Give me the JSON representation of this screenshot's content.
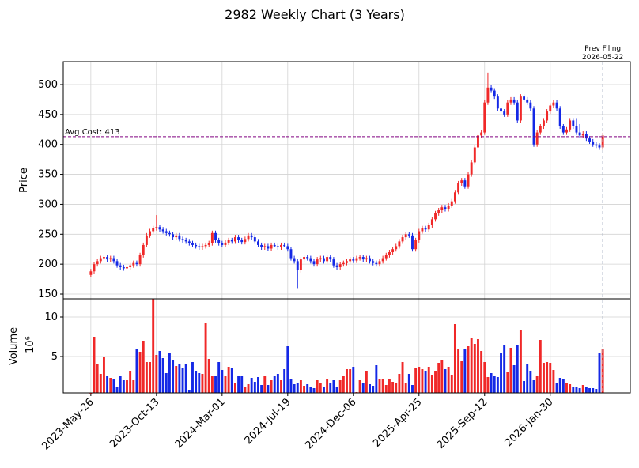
{
  "chart_data": {
    "type": "candlestick",
    "title": "2982 Weekly Chart (3 Years)",
    "ylabel": "Price",
    "volume_label": "Volume",
    "volume_offset": "10⁶",
    "up_color": "#f02828",
    "down_color": "#1428e6",
    "grid": true,
    "xlim": [
      -8.4,
      164.4
    ],
    "xticks": [
      {
        "value": 0,
        "label": "2023-May-26"
      },
      {
        "value": 20,
        "label": "2023-Oct-13"
      },
      {
        "value": 40,
        "label": "2024-Mar-01"
      },
      {
        "value": 60,
        "label": "2024-Jul-19"
      },
      {
        "value": 80,
        "label": "2024-Dec-06"
      },
      {
        "value": 100,
        "label": "2025-Apr-25"
      },
      {
        "value": 120,
        "label": "2025-Sep-12"
      },
      {
        "value": 140,
        "label": "2026-Jan-30"
      }
    ],
    "ylim": [
      142.1,
      538.3
    ],
    "yticks": [
      150,
      200,
      250,
      300,
      350,
      400,
      450,
      500
    ],
    "volume_ylim": [
      0.4,
      12.3
    ],
    "volume_yticks": [
      5,
      10
    ],
    "avg_cost": {
      "value": 413,
      "label": "Avg Cost: 413",
      "color": "#800080"
    },
    "prev_filing": {
      "x": 156,
      "label_lines": [
        "Prev Filing",
        "2026-05-22"
      ],
      "color": "#778899"
    },
    "open": [
      182,
      188,
      200,
      205,
      210,
      212,
      208,
      210,
      205,
      198,
      195,
      193,
      195,
      198,
      202,
      200,
      215,
      232,
      248,
      255,
      260,
      262,
      258,
      255,
      252,
      250,
      245,
      248,
      242,
      240,
      238,
      235,
      232,
      230,
      228,
      230,
      232,
      235,
      252,
      240,
      235,
      232,
      236,
      240,
      238,
      245,
      240,
      237,
      242,
      248,
      245,
      238,
      232,
      228,
      230,
      226,
      232,
      230,
      228,
      232,
      230,
      225,
      210,
      205,
      190,
      208,
      212,
      210,
      205,
      200,
      208,
      210,
      205,
      212,
      208,
      198,
      195,
      200,
      202,
      205,
      208,
      206,
      210,
      212,
      208,
      210,
      205,
      202,
      200,
      205,
      210,
      215,
      220,
      225,
      230,
      238,
      245,
      250,
      248,
      225,
      240,
      255,
      260,
      258,
      265,
      275,
      285,
      290,
      295,
      292,
      298,
      305,
      320,
      335,
      340,
      330,
      350,
      370,
      395,
      415,
      420,
      470,
      495,
      490,
      480,
      460,
      455,
      450,
      470,
      475,
      470,
      440,
      480,
      475,
      470,
      460,
      400,
      420,
      430,
      440,
      455,
      465,
      470,
      460,
      430,
      420,
      425,
      440,
      430,
      420,
      415,
      418,
      410,
      405,
      400,
      398,
      395
    ],
    "high": [
      192,
      204,
      209,
      214,
      216,
      216,
      214,
      214,
      209,
      202,
      199,
      199,
      202,
      206,
      206,
      219,
      236,
      252,
      259,
      264,
      282,
      266,
      262,
      259,
      256,
      254,
      252,
      252,
      246,
      244,
      242,
      239,
      236,
      234,
      234,
      236,
      239,
      256,
      256,
      244,
      239,
      240,
      244,
      244,
      249,
      249,
      244,
      246,
      252,
      252,
      249,
      242,
      236,
      234,
      234,
      236,
      236,
      234,
      236,
      236,
      234,
      229,
      214,
      209,
      212,
      216,
      216,
      214,
      209,
      212,
      214,
      214,
      216,
      216,
      212,
      202,
      204,
      206,
      209,
      212,
      212,
      214,
      216,
      216,
      214,
      214,
      209,
      206,
      209,
      214,
      219,
      224,
      229,
      234,
      242,
      249,
      254,
      254,
      252,
      244,
      259,
      264,
      264,
      269,
      279,
      289,
      294,
      299,
      299,
      302,
      309,
      324,
      339,
      344,
      344,
      354,
      374,
      399,
      419,
      424,
      474,
      520,
      499,
      494,
      484,
      464,
      459,
      474,
      479,
      479,
      474,
      484,
      484,
      479,
      474,
      464,
      424,
      434,
      444,
      459,
      469,
      474,
      474,
      464,
      434,
      429,
      444,
      444,
      444,
      434,
      422,
      422,
      414,
      409,
      404,
      402,
      419
    ],
    "low": [
      178,
      184,
      196,
      201,
      206,
      204,
      204,
      201,
      194,
      191,
      189,
      189,
      191,
      194,
      196,
      196,
      211,
      228,
      244,
      251,
      256,
      254,
      251,
      248,
      246,
      241,
      241,
      238,
      236,
      234,
      231,
      228,
      226,
      224,
      224,
      226,
      228,
      231,
      236,
      231,
      228,
      228,
      232,
      234,
      234,
      236,
      233,
      233,
      238,
      241,
      234,
      228,
      224,
      224,
      222,
      222,
      228,
      224,
      224,
      228,
      221,
      206,
      201,
      160,
      186,
      204,
      206,
      201,
      196,
      196,
      204,
      201,
      201,
      204,
      194,
      191,
      191,
      196,
      198,
      201,
      202,
      202,
      206,
      204,
      204,
      201,
      198,
      196,
      196,
      201,
      206,
      211,
      216,
      221,
      226,
      234,
      241,
      244,
      221,
      221,
      236,
      251,
      254,
      254,
      261,
      271,
      281,
      286,
      288,
      288,
      294,
      301,
      316,
      331,
      326,
      326,
      346,
      366,
      391,
      411,
      416,
      466,
      486,
      476,
      456,
      451,
      446,
      446,
      466,
      466,
      436,
      436,
      471,
      466,
      456,
      396,
      396,
      416,
      426,
      436,
      451,
      461,
      456,
      426,
      416,
      416,
      421,
      426,
      416,
      411,
      411,
      406,
      401,
      396,
      394,
      391,
      391
    ],
    "close": [
      188,
      200,
      205,
      210,
      212,
      208,
      210,
      205,
      198,
      195,
      193,
      195,
      198,
      202,
      200,
      215,
      232,
      248,
      255,
      260,
      262,
      258,
      255,
      252,
      250,
      245,
      248,
      242,
      240,
      238,
      235,
      232,
      230,
      228,
      230,
      232,
      235,
      252,
      240,
      235,
      232,
      236,
      240,
      238,
      245,
      240,
      237,
      242,
      248,
      245,
      238,
      232,
      228,
      230,
      226,
      232,
      230,
      228,
      232,
      230,
      225,
      210,
      205,
      190,
      208,
      212,
      210,
      205,
      200,
      208,
      210,
      205,
      212,
      208,
      198,
      195,
      200,
      202,
      205,
      208,
      206,
      210,
      212,
      208,
      210,
      205,
      202,
      200,
      205,
      210,
      215,
      220,
      225,
      230,
      238,
      245,
      250,
      248,
      225,
      240,
      255,
      260,
      258,
      265,
      275,
      285,
      290,
      295,
      292,
      298,
      305,
      320,
      335,
      340,
      330,
      350,
      370,
      395,
      415,
      420,
      470,
      495,
      490,
      480,
      460,
      455,
      450,
      470,
      475,
      470,
      440,
      480,
      475,
      470,
      460,
      400,
      420,
      430,
      440,
      455,
      465,
      470,
      460,
      430,
      420,
      425,
      440,
      430,
      420,
      415,
      418,
      410,
      405,
      400,
      398,
      395,
      415
    ],
    "volume": [
      0.3,
      7.5,
      4.0,
      2.8,
      5.0,
      2.6,
      2.3,
      2.2,
      1.2,
      2.5,
      2.0,
      2.0,
      3.2,
      2.0,
      6.0,
      5.6,
      7.0,
      4.3,
      4.3,
      12.3,
      5.2,
      5.7,
      4.8,
      2.9,
      5.4,
      4.6,
      3.8,
      4.1,
      3.5,
      4.0,
      0.8,
      4.3,
      3.2,
      2.9,
      2.8,
      9.3,
      4.7,
      2.6,
      2.5,
      4.3,
      3.3,
      2.6,
      3.7,
      3.5,
      1.6,
      2.5,
      2.5,
      1.1,
      1.5,
      2.3,
      1.8,
      2.4,
      1.4,
      2.5,
      1.4,
      2.0,
      2.6,
      2.8,
      2.0,
      3.4,
      6.3,
      2.2,
      1.5,
      1.6,
      2.0,
      1.3,
      1.5,
      1.1,
      1.0,
      2.0,
      1.6,
      1.1,
      2.1,
      1.7,
      2.0,
      1.2,
      2.0,
      2.5,
      3.4,
      3.4,
      3.7,
      0.5,
      2.0,
      1.6,
      3.2,
      1.5,
      1.3,
      3.9,
      2.2,
      2.2,
      1.4,
      2.1,
      1.8,
      1.7,
      2.8,
      4.3,
      1.6,
      2.8,
      1.4,
      3.6,
      3.7,
      3.4,
      3.2,
      3.7,
      2.7,
      3.2,
      4.2,
      4.5,
      3.4,
      3.7,
      2.7,
      9.1,
      5.9,
      4.4,
      6.0,
      6.3,
      7.3,
      6.6,
      7.2,
      5.7,
      4.3,
      2.4,
      2.9,
      2.6,
      2.4,
      5.5,
      6.4,
      3.1,
      6.1,
      3.9,
      6.5,
      8.3,
      1.9,
      4.1,
      3.2,
      2.0,
      2.5,
      7.1,
      4.2,
      4.3,
      4.2,
      3.3,
      1.6,
      2.3,
      2.2,
      1.7,
      1.5,
      1.2,
      1.1,
      1.0,
      1.4,
      1.2,
      1.0,
      1.0,
      0.9,
      5.4,
      6.0
    ]
  }
}
